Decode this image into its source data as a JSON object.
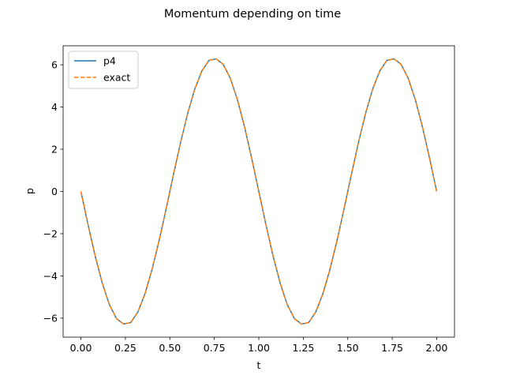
{
  "chart_data": {
    "type": "line",
    "title": "Momentum depending on time",
    "xlabel": "t",
    "ylabel": "p",
    "xlim": [
      -0.1,
      2.1
    ],
    "ylim": [
      -6.9,
      6.9
    ],
    "xticks": [
      0.0,
      0.25,
      0.5,
      0.75,
      1.0,
      1.25,
      1.5,
      1.75,
      2.0
    ],
    "xtick_labels": [
      "0.00",
      "0.25",
      "0.50",
      "0.75",
      "1.00",
      "1.25",
      "1.50",
      "1.75",
      "2.00"
    ],
    "yticks": [
      -6,
      -4,
      -2,
      0,
      2,
      4,
      6
    ],
    "ytick_labels": [
      "−6",
      "−4",
      "−2",
      "0",
      "2",
      "4",
      "6"
    ],
    "grid": false,
    "legend_position": "top-left",
    "series": [
      {
        "name": "p4",
        "style": "solid",
        "color": "#1f77b4",
        "x": [
          0.0,
          0.04,
          0.08,
          0.12,
          0.16,
          0.2,
          0.24,
          0.28,
          0.32,
          0.36,
          0.4,
          0.44,
          0.48,
          0.52,
          0.56,
          0.6,
          0.64,
          0.68,
          0.72,
          0.76,
          0.8,
          0.84,
          0.88,
          0.92,
          0.96,
          1.0,
          1.04,
          1.08,
          1.12,
          1.16,
          1.2,
          1.24,
          1.28,
          1.32,
          1.36,
          1.4,
          1.44,
          1.48,
          1.52,
          1.56,
          1.6,
          1.64,
          1.68,
          1.72,
          1.76,
          1.8,
          1.84,
          1.88,
          1.92,
          1.96,
          2.0
        ],
        "y": [
          0.0,
          -1.57,
          -3.05,
          -4.34,
          -5.36,
          -6.02,
          -6.28,
          -6.21,
          -5.71,
          -4.85,
          -3.69,
          -2.31,
          -0.79,
          0.79,
          2.31,
          3.69,
          4.85,
          5.71,
          6.21,
          6.28,
          6.02,
          5.36,
          4.34,
          3.05,
          1.57,
          0.0,
          -1.57,
          -3.05,
          -4.34,
          -5.36,
          -6.02,
          -6.28,
          -6.21,
          -5.71,
          -4.85,
          -3.69,
          -2.31,
          -0.79,
          0.79,
          2.31,
          3.69,
          4.85,
          5.71,
          6.21,
          6.28,
          6.02,
          5.36,
          4.34,
          3.05,
          1.57,
          0.0
        ]
      },
      {
        "name": "exact",
        "style": "dashed",
        "color": "#ff7f0e",
        "x": [
          0.0,
          0.04,
          0.08,
          0.12,
          0.16,
          0.2,
          0.24,
          0.28,
          0.32,
          0.36,
          0.4,
          0.44,
          0.48,
          0.52,
          0.56,
          0.6,
          0.64,
          0.68,
          0.72,
          0.76,
          0.8,
          0.84,
          0.88,
          0.92,
          0.96,
          1.0,
          1.04,
          1.08,
          1.12,
          1.16,
          1.2,
          1.24,
          1.28,
          1.32,
          1.36,
          1.4,
          1.44,
          1.48,
          1.52,
          1.56,
          1.6,
          1.64,
          1.68,
          1.72,
          1.76,
          1.8,
          1.84,
          1.88,
          1.92,
          1.96,
          2.0
        ],
        "y": [
          0.0,
          -1.57,
          -3.05,
          -4.34,
          -5.36,
          -6.02,
          -6.28,
          -6.21,
          -5.71,
          -4.85,
          -3.69,
          -2.31,
          -0.79,
          0.79,
          2.31,
          3.69,
          4.85,
          5.71,
          6.21,
          6.28,
          6.02,
          5.36,
          4.34,
          3.05,
          1.57,
          0.0,
          -1.57,
          -3.05,
          -4.34,
          -5.36,
          -6.02,
          -6.28,
          -6.21,
          -5.71,
          -4.85,
          -3.69,
          -2.31,
          -0.79,
          0.79,
          2.31,
          3.69,
          4.85,
          5.71,
          6.21,
          6.28,
          6.02,
          5.36,
          4.34,
          3.05,
          1.57,
          0.0
        ]
      }
    ]
  }
}
